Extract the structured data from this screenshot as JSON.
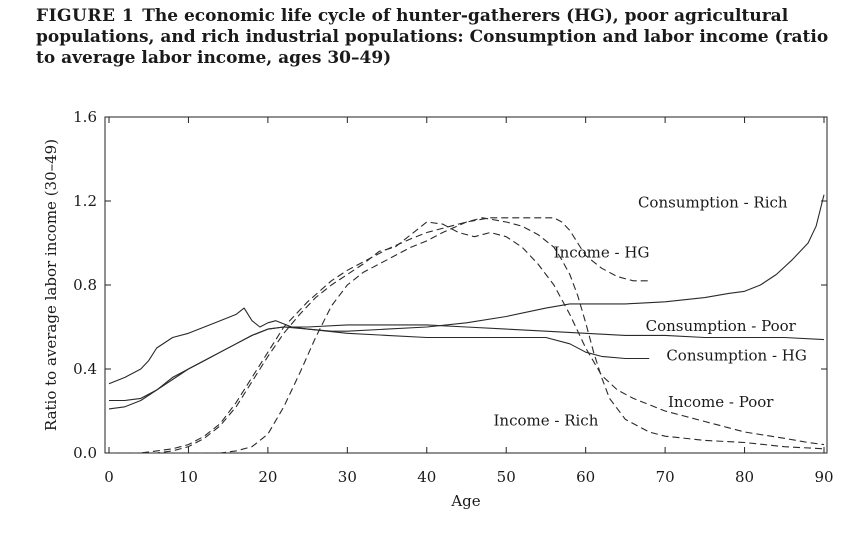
{
  "figure": {
    "label": "FIGURE 1",
    "title": "The economic life cycle of hunter-gatherers (HG), poor agricultural populations, and rich industrial populations: Consumption and labor income (ratio to average labor income, ages 30–49)"
  },
  "chart_data": {
    "type": "line",
    "xlabel": "Age",
    "ylabel": "Ratio to average labor income (30–49)",
    "xlim": [
      0,
      90
    ],
    "ylim": [
      0,
      1.6
    ],
    "xticks": [
      "0",
      "10",
      "20",
      "30",
      "40",
      "50",
      "60",
      "70",
      "80",
      "90"
    ],
    "yticks": [
      "0.0",
      "0.4",
      "0.8",
      "1.2",
      "1.6"
    ],
    "grid": false,
    "series": [
      {
        "name": "Consumption - Rich",
        "style": "solid",
        "x": [
          0,
          2,
          4,
          5,
          6,
          8,
          10,
          12,
          14,
          16,
          17,
          18,
          19,
          20,
          21,
          23,
          25,
          28,
          30,
          35,
          40,
          45,
          50,
          55,
          58,
          60,
          65,
          70,
          75,
          78,
          80,
          82,
          84,
          86,
          88,
          89,
          90
        ],
        "y": [
          0.33,
          0.36,
          0.4,
          0.44,
          0.5,
          0.55,
          0.57,
          0.6,
          0.63,
          0.66,
          0.69,
          0.63,
          0.6,
          0.62,
          0.63,
          0.6,
          0.59,
          0.58,
          0.58,
          0.59,
          0.6,
          0.62,
          0.65,
          0.69,
          0.71,
          0.71,
          0.71,
          0.72,
          0.74,
          0.76,
          0.77,
          0.8,
          0.85,
          0.92,
          1.0,
          1.08,
          1.23
        ]
      },
      {
        "name": "Consumption - Poor",
        "style": "solid",
        "x": [
          0,
          2,
          4,
          6,
          8,
          10,
          12,
          14,
          16,
          18,
          20,
          22,
          25,
          30,
          35,
          40,
          45,
          50,
          55,
          60,
          65,
          70,
          75,
          80,
          85,
          90
        ],
        "y": [
          0.21,
          0.22,
          0.25,
          0.3,
          0.36,
          0.4,
          0.44,
          0.48,
          0.52,
          0.56,
          0.59,
          0.6,
          0.6,
          0.61,
          0.61,
          0.61,
          0.6,
          0.59,
          0.58,
          0.57,
          0.56,
          0.56,
          0.55,
          0.55,
          0.55,
          0.54
        ]
      },
      {
        "name": "Consumption - HG",
        "style": "solid",
        "x": [
          0,
          2,
          4,
          6,
          8,
          10,
          12,
          14,
          16,
          18,
          20,
          22,
          25,
          30,
          35,
          40,
          45,
          50,
          55,
          58,
          60,
          62,
          65,
          68
        ],
        "y": [
          0.25,
          0.25,
          0.26,
          0.3,
          0.35,
          0.4,
          0.44,
          0.48,
          0.52,
          0.56,
          0.59,
          0.6,
          0.59,
          0.57,
          0.56,
          0.55,
          0.55,
          0.55,
          0.55,
          0.52,
          0.48,
          0.46,
          0.45,
          0.45
        ]
      },
      {
        "name": "Income - HG",
        "style": "dashed",
        "x": [
          0,
          4,
          6,
          8,
          10,
          12,
          14,
          16,
          18,
          20,
          22,
          25,
          28,
          30,
          33,
          35,
          38,
          40,
          43,
          45,
          48,
          50,
          52,
          54,
          56,
          57,
          58,
          59,
          60,
          62,
          64,
          66,
          68
        ],
        "y": [
          0.0,
          0.0,
          0.01,
          0.02,
          0.04,
          0.08,
          0.14,
          0.24,
          0.36,
          0.48,
          0.6,
          0.72,
          0.82,
          0.87,
          0.93,
          0.97,
          1.02,
          1.05,
          1.08,
          1.1,
          1.12,
          1.12,
          1.12,
          1.12,
          1.12,
          1.1,
          1.06,
          1.0,
          0.94,
          0.88,
          0.84,
          0.82,
          0.82
        ]
      },
      {
        "name": "Income - Poor",
        "style": "dashed",
        "x": [
          0,
          4,
          6,
          8,
          10,
          12,
          14,
          16,
          18,
          20,
          22,
          24,
          26,
          28,
          30,
          32,
          34,
          36,
          38,
          40,
          42,
          44,
          46,
          48,
          50,
          52,
          54,
          56,
          58,
          60,
          62,
          64,
          66,
          68,
          70,
          72,
          75,
          78,
          80,
          85,
          88,
          90
        ],
        "y": [
          0.0,
          0.0,
          0.0,
          0.01,
          0.03,
          0.07,
          0.13,
          0.22,
          0.34,
          0.46,
          0.57,
          0.66,
          0.74,
          0.8,
          0.85,
          0.9,
          0.96,
          0.98,
          1.04,
          1.1,
          1.09,
          1.05,
          1.03,
          1.05,
          1.03,
          0.98,
          0.9,
          0.8,
          0.66,
          0.5,
          0.37,
          0.3,
          0.26,
          0.23,
          0.2,
          0.18,
          0.15,
          0.12,
          0.1,
          0.07,
          0.05,
          0.04
        ]
      },
      {
        "name": "Income - Rich",
        "style": "dashed",
        "x": [
          0,
          10,
          14,
          16,
          18,
          20,
          22,
          24,
          26,
          28,
          30,
          32,
          35,
          38,
          40,
          42,
          45,
          47,
          50,
          52,
          54,
          56,
          57,
          58,
          59,
          60,
          61,
          62,
          63,
          65,
          68,
          70,
          75,
          80,
          85,
          90
        ],
        "y": [
          0.0,
          0.0,
          0.0,
          0.01,
          0.03,
          0.09,
          0.22,
          0.38,
          0.55,
          0.7,
          0.8,
          0.86,
          0.92,
          0.98,
          1.01,
          1.05,
          1.1,
          1.12,
          1.1,
          1.08,
          1.04,
          0.98,
          0.92,
          0.85,
          0.75,
          0.62,
          0.48,
          0.36,
          0.26,
          0.16,
          0.1,
          0.08,
          0.06,
          0.05,
          0.03,
          0.02
        ]
      }
    ],
    "annotations": [
      {
        "series": "Consumption - Rich",
        "text": "Consumption - Rich",
        "x": 76,
        "y": 1.17
      },
      {
        "series": "Income - HG",
        "text": "Income - HG",
        "x": 62,
        "y": 0.93
      },
      {
        "series": "Consumption - Poor",
        "text": "Consumption - Poor",
        "x": 77,
        "y": 0.58
      },
      {
        "series": "Consumption - HG",
        "text": "Consumption - HG",
        "x": 79,
        "y": 0.44
      },
      {
        "series": "Income - Poor",
        "text": "Income - Poor",
        "x": 77,
        "y": 0.22
      },
      {
        "series": "Income - Rich",
        "text": "Income - Rich",
        "x": 55,
        "y": 0.13
      }
    ]
  }
}
